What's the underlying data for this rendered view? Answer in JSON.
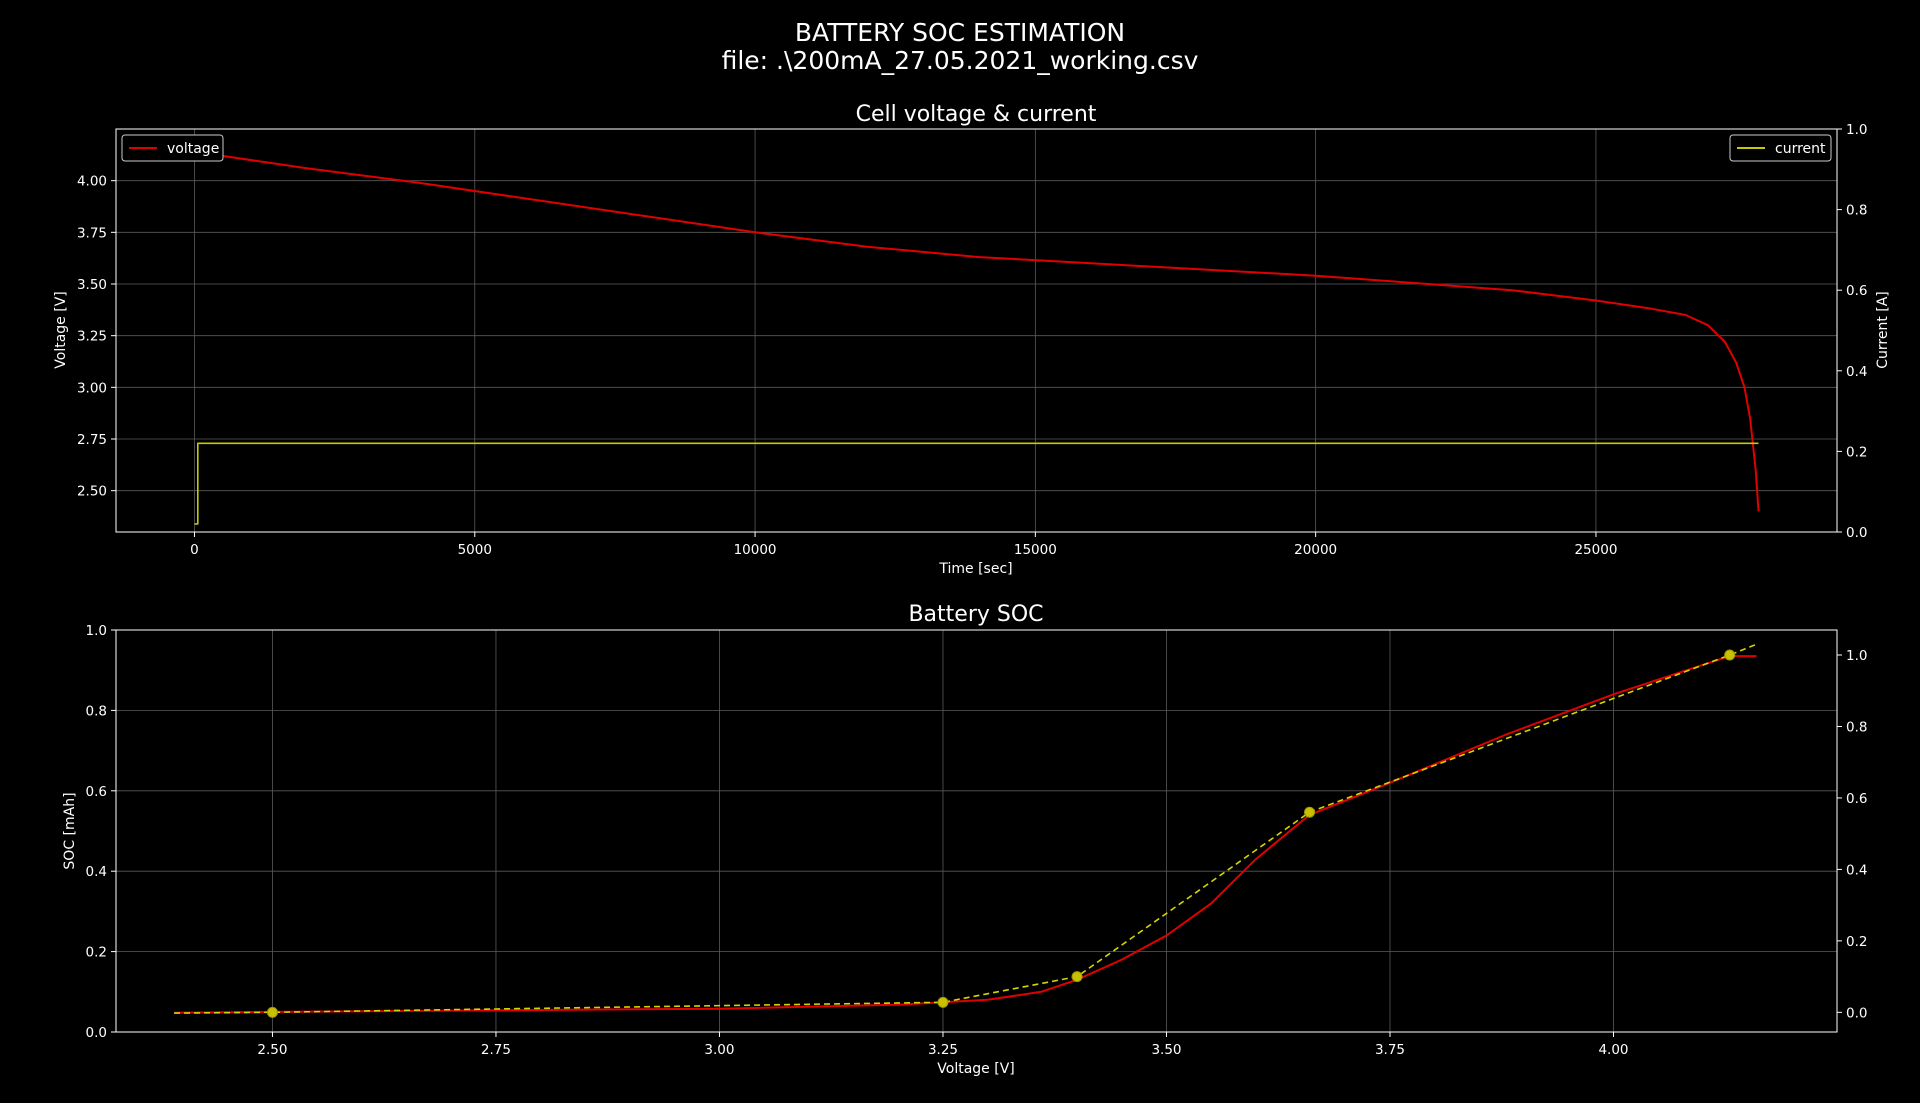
{
  "figure": {
    "title_line1": "BATTERY SOC ESTIMATION",
    "title_line2": "file: .\\200mA_27.05.2021_working.csv"
  },
  "colors": {
    "background": "#000000",
    "voltage": "#e00000",
    "current": "#c8c800",
    "soc_fit": "#d4d400",
    "points": "#c8c000",
    "grid": "#5a5a5a",
    "axes": "#ffffff"
  },
  "chart_data": [
    {
      "type": "line",
      "title": "Cell voltage & current",
      "xlabel": "Time [sec]",
      "ylabel": "Voltage [V]",
      "ylabel_right": "Current [A]",
      "xlim": [
        -1400,
        29300
      ],
      "ylim": [
        2.3,
        4.25
      ],
      "ylim_right": [
        0,
        1.0
      ],
      "xticks": [
        0,
        5000,
        10000,
        15000,
        20000,
        25000
      ],
      "xtick_labels": [
        "0",
        "5000",
        "10000",
        "15000",
        "20000",
        "25000"
      ],
      "yticks": [
        2.5,
        2.75,
        3.0,
        3.25,
        3.5,
        3.75,
        4.0
      ],
      "ytick_labels": [
        "2.50",
        "2.75",
        "3.00",
        "3.25",
        "3.50",
        "3.75",
        "4.00"
      ],
      "yticks_right": [
        0,
        0.2,
        0.4,
        0.6,
        0.8,
        1.0
      ],
      "ytick_labels_right": [
        "0.0",
        "0.2",
        "0.4",
        "0.6",
        "0.8",
        "1.0"
      ],
      "grid": true,
      "legend_left": "top-left",
      "legend_right": "top-right",
      "series": [
        {
          "name": "voltage",
          "axis": "left",
          "x": [
            0,
            500,
            2000,
            4000,
            6000,
            8000,
            10000,
            12000,
            14000,
            16000,
            18000,
            20000,
            22000,
            23500,
            25000,
            26000,
            26600,
            27000,
            27300,
            27500,
            27650,
            27750,
            27850,
            27900
          ],
          "y": [
            4.15,
            4.12,
            4.06,
            3.99,
            3.91,
            3.83,
            3.75,
            3.68,
            3.63,
            3.6,
            3.57,
            3.54,
            3.5,
            3.47,
            3.42,
            3.38,
            3.35,
            3.3,
            3.22,
            3.12,
            3.0,
            2.85,
            2.6,
            2.4
          ]
        },
        {
          "name": "current",
          "axis": "right",
          "x": [
            0,
            60,
            60,
            27900
          ],
          "y": [
            0.02,
            0.02,
            0.22,
            0.22
          ]
        }
      ]
    },
    {
      "type": "line",
      "title": "Battery SOC",
      "xlabel": "Voltage [V]",
      "ylabel": "SOC [mAh]",
      "xlim": [
        2.325,
        4.25
      ],
      "ylim": [
        0.0,
        1.0
      ],
      "ylim_right": [
        -0.055,
        1.07
      ],
      "xticks": [
        2.5,
        2.75,
        3.0,
        3.25,
        3.5,
        3.75,
        4.0
      ],
      "xtick_labels": [
        "2.50",
        "2.75",
        "3.00",
        "3.25",
        "3.50",
        "3.75",
        "4.00"
      ],
      "yticks": [
        0.0,
        0.2,
        0.4,
        0.6,
        0.8,
        1.0
      ],
      "ytick_labels": [
        "0.0",
        "0.2",
        "0.4",
        "0.6",
        "0.8",
        "1.0"
      ],
      "yticks_right": [
        0.0,
        0.2,
        0.4,
        0.6,
        0.8,
        1.0
      ],
      "ytick_labels_right": [
        "0.0",
        "0.2",
        "0.4",
        "0.6",
        "0.8",
        "1.0"
      ],
      "grid": true,
      "series": [
        {
          "name": "",
          "style": "solid",
          "axis": "left",
          "x": [
            2.39,
            2.5,
            2.75,
            3.0,
            3.2,
            3.3,
            3.36,
            3.4,
            3.45,
            3.5,
            3.55,
            3.6,
            3.66,
            3.75,
            3.88,
            4.0,
            4.13,
            4.16
          ],
          "y": [
            0.048,
            0.05,
            0.054,
            0.058,
            0.068,
            0.08,
            0.1,
            0.13,
            0.18,
            0.24,
            0.32,
            0.43,
            0.54,
            0.62,
            0.74,
            0.84,
            0.935,
            0.935
          ]
        },
        {
          "name": "",
          "style": "dashed",
          "axis": "right",
          "x": [
            2.39,
            2.5,
            3.25,
            3.4,
            3.66,
            4.13,
            4.16
          ],
          "y": [
            -0.002,
            0.0,
            0.028,
            0.1,
            0.56,
            1.0,
            1.03
          ]
        },
        {
          "name": "",
          "style": "points",
          "axis": "right",
          "x": [
            2.5,
            3.25,
            3.4,
            3.66,
            4.13
          ],
          "y": [
            0.0,
            0.028,
            0.1,
            0.56,
            1.0
          ]
        }
      ]
    }
  ]
}
